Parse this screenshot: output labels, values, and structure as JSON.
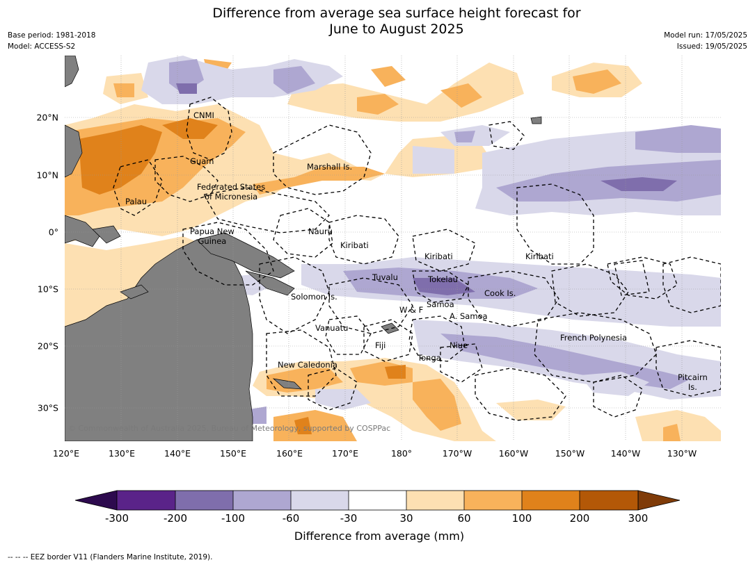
{
  "title": "Difference from average sea surface height forecast for\nJune to August 2025",
  "header_left": {
    "base_period": "Base period: 1981-2018",
    "model": "Model: ACCESS-S2"
  },
  "header_right": {
    "model_run": "Model run: 17/05/2025",
    "issued": "Issued: 19/05/2025"
  },
  "map": {
    "lon_labels": [
      "120°E",
      "130°E",
      "140°E",
      "150°E",
      "160°E",
      "170°E",
      "180°",
      "170°W",
      "160°W",
      "150°W",
      "140°W",
      "130°W"
    ],
    "lat_labels": [
      "20°N",
      "10°N",
      "0°",
      "10°S",
      "20°S",
      "30°S"
    ],
    "place_labels": {
      "cnmi": "CNMI",
      "guam": "Guam",
      "marshall": "Marshall Is.",
      "fsm": "Federated States\nof Micronesia",
      "palau": "Palau",
      "png": "Papua New\nGuinea",
      "nauru": "Nauru",
      "kiribati_w": "Kiribati",
      "kiribati_c": "Kiribati",
      "kiribati_e": "Kiribati",
      "tuvalu": "Tuvalu",
      "tokelau": "Tokelau",
      "solomon": "Solomon Is.",
      "samoa": "Samoa",
      "wf": "W & F",
      "am_samoa": "A. Samoa",
      "cook": "Cook Is.",
      "vanuatu": "Vanuatu",
      "fiji": "Fiji",
      "niue": "Niue",
      "tonga": "Tonga",
      "fr_polynesia": "French Polynesia",
      "new_caledonia": "New Caledonia",
      "pitcairn": "Pitcairn\nIs."
    },
    "copyright": "© Commonwealth of Australia 2025, Bureau of Meteorology, supported by COSPPac",
    "land_color": "#808080"
  },
  "colorbar": {
    "ticks": [
      "-300",
      "-200",
      "-100",
      "-60",
      "-30",
      "30",
      "60",
      "100",
      "200",
      "300"
    ],
    "colors": [
      "#2d0a4e",
      "#5a2389",
      "#7f6eac",
      "#aea7d1",
      "#d9d8ea",
      "#ffffff",
      "#fde0b2",
      "#f8b25b",
      "#e0821b",
      "#b35807",
      "#7f3b08"
    ],
    "label": "Difference from average (mm)"
  },
  "eez_note": "--  --  -- EEZ border V11 (Flanders Marine Institute, 2019)."
}
